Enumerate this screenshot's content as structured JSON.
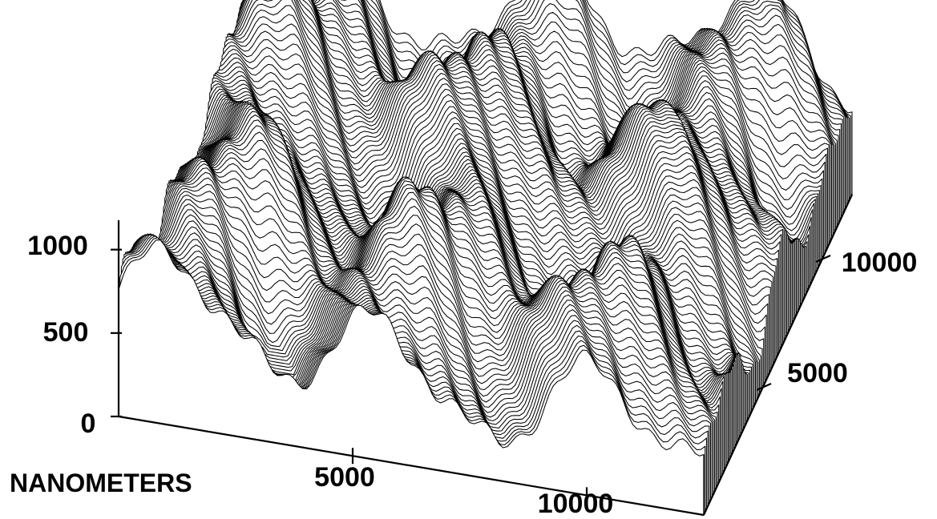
{
  "chart_data": {
    "type": "surface-3d",
    "description_units": "nanometers",
    "title": "",
    "xlabel": "NANOMETERS",
    "ylabel": "",
    "zlabel": "",
    "x_ticks": [
      "5000",
      "10000"
    ],
    "y_ticks": [
      "5000",
      "10000"
    ],
    "z_ticks": [
      "0",
      "500",
      "1000"
    ],
    "xlim": [
      0,
      12500
    ],
    "ylim": [
      0,
      12500
    ],
    "zlim": [
      0,
      1200
    ],
    "surface": {
      "style": "stacked profile lines",
      "profile_count": 110,
      "height_range": [
        200,
        1150
      ],
      "dominant_period_nm": 4500,
      "note_visible": "ridged periodic topography"
    },
    "grid": false,
    "legend": "none",
    "colors": {
      "line": "#000000",
      "background": "#ffffff"
    }
  }
}
